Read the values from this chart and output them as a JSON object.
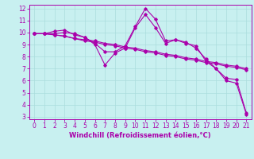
{
  "title": "",
  "xlabel": "Windchill (Refroidissement éolien,°C)",
  "ylabel": "",
  "bg_color": "#c8f0f0",
  "line_color": "#aa00aa",
  "grid_color": "#aadddd",
  "xlim": [
    -0.5,
    21.5
  ],
  "ylim": [
    2.8,
    12.3
  ],
  "xticks": [
    0,
    1,
    2,
    3,
    4,
    5,
    6,
    7,
    8,
    9,
    10,
    11,
    12,
    13,
    14,
    15,
    16,
    17,
    18,
    19,
    20,
    21
  ],
  "yticks": [
    3,
    4,
    5,
    6,
    7,
    8,
    9,
    10,
    11,
    12
  ],
  "series": [
    [
      9.9,
      9.9,
      10.1,
      10.2,
      9.8,
      9.6,
      9.1,
      8.4,
      8.4,
      8.9,
      10.5,
      12.0,
      11.1,
      9.3,
      9.4,
      9.2,
      8.7,
      7.8,
      7.0,
      6.2,
      6.1,
      3.3
    ],
    [
      9.9,
      9.9,
      9.8,
      9.7,
      9.5,
      9.4,
      9.3,
      9.1,
      9.0,
      8.8,
      8.7,
      8.5,
      8.4,
      8.2,
      8.1,
      7.9,
      7.8,
      7.6,
      7.5,
      7.3,
      7.2,
      7.0
    ],
    [
      9.9,
      9.9,
      9.8,
      9.7,
      9.5,
      9.3,
      9.2,
      9.0,
      8.9,
      8.7,
      8.6,
      8.4,
      8.3,
      8.1,
      8.0,
      7.8,
      7.7,
      7.5,
      7.4,
      7.2,
      7.1,
      6.9
    ],
    [
      9.9,
      9.9,
      9.9,
      10.0,
      9.9,
      9.6,
      9.0,
      7.3,
      8.3,
      8.7,
      10.4,
      11.5,
      10.4,
      9.1,
      9.4,
      9.1,
      8.9,
      7.6,
      7.0,
      6.0,
      5.8,
      3.2
    ]
  ]
}
